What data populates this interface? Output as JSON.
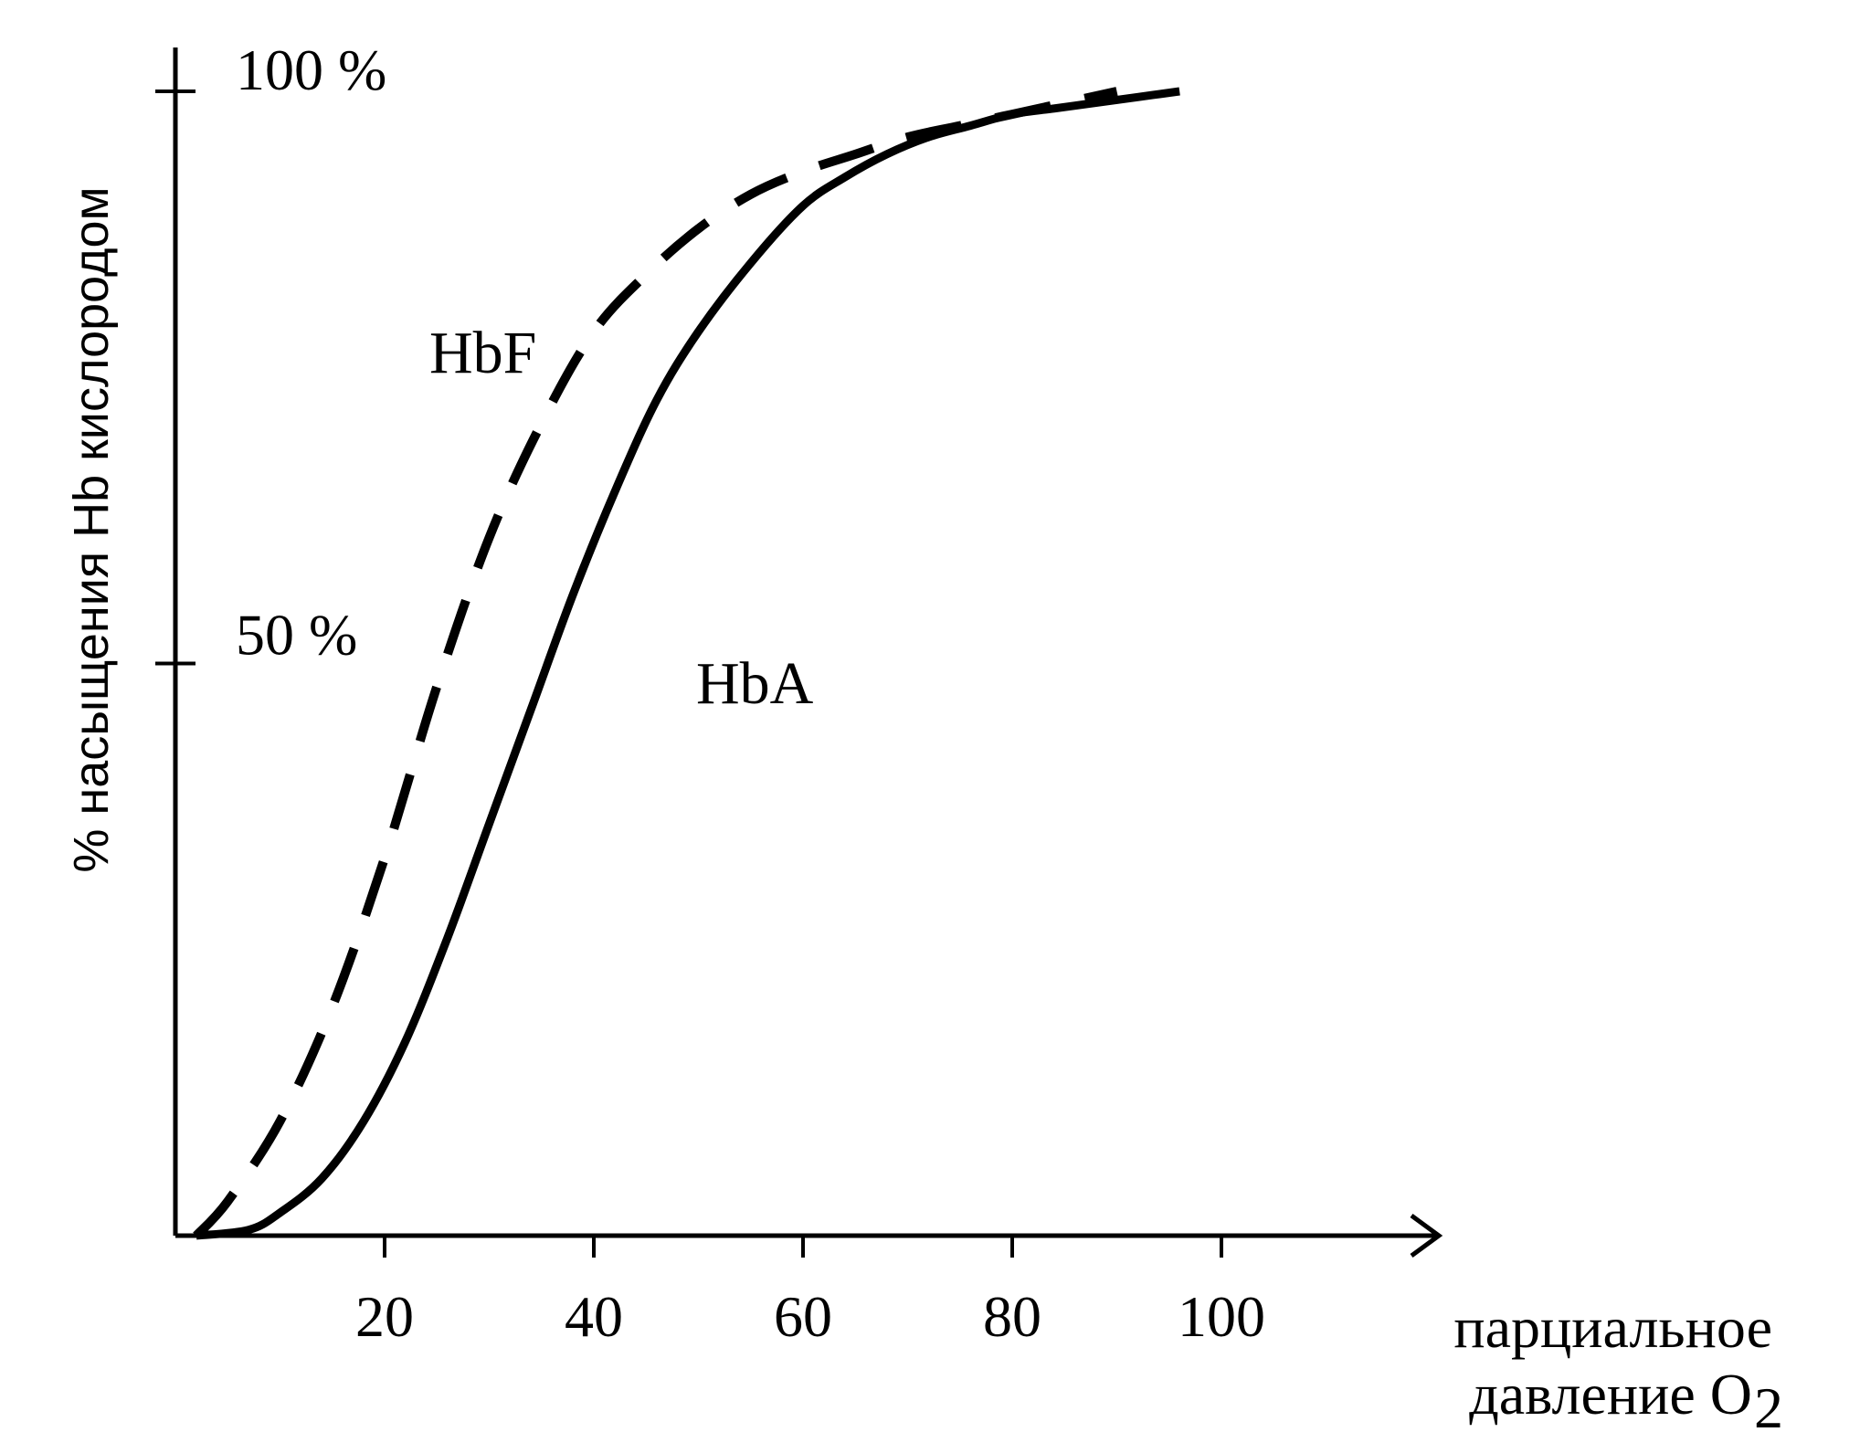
{
  "chart_data": {
    "type": "line",
    "ylabel": "% насыщения Hb кислородом",
    "xlabel_line1": "парциальное",
    "xlabel_line2": "давление O",
    "xlabel_sub": "2",
    "x_ticks": [
      20,
      40,
      60,
      80,
      100
    ],
    "x_tick_labels": [
      "20",
      "40",
      "60",
      "80",
      "100"
    ],
    "y_ticks": [
      50,
      100
    ],
    "y_tick_labels": [
      "50 %",
      "100 %"
    ],
    "xlim": [
      0,
      115
    ],
    "ylim": [
      0,
      100
    ],
    "grid": false,
    "series": [
      {
        "name": "HbF",
        "style": "dashed",
        "x": [
          2,
          5,
          10,
          15,
          20,
          25,
          30,
          35,
          40,
          45,
          50,
          55,
          60,
          65,
          70,
          75,
          80,
          85,
          90
        ],
        "y": [
          0,
          3,
          10,
          20,
          33,
          48,
          61,
          71,
          79,
          84,
          88,
          91,
          93,
          94.5,
          96,
          97,
          98,
          99,
          100
        ]
      },
      {
        "name": "HbA",
        "style": "solid",
        "x": [
          2,
          7,
          10,
          14,
          18,
          22,
          26,
          30,
          34,
          38,
          42,
          46,
          50,
          55,
          60,
          64,
          68,
          72,
          76,
          80,
          84,
          88,
          92,
          96
        ],
        "y": [
          0,
          0.5,
          2,
          5,
          10,
          17,
          26,
          36,
          46,
          56,
          65,
          73,
          79,
          85,
          90,
          92.5,
          94.5,
          96,
          97,
          98,
          98.5,
          99,
          99.5,
          100
        ]
      }
    ]
  },
  "colors": {
    "ink": "#000000",
    "background": "#ffffff"
  }
}
